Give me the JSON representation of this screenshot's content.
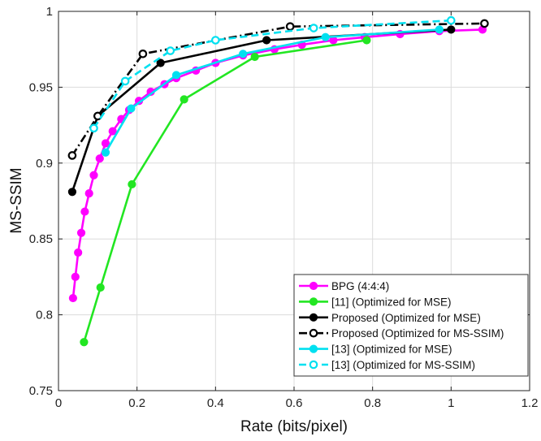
{
  "chart_data": {
    "type": "line",
    "title": "",
    "xlabel": "Rate (bits/pixel)",
    "ylabel": "MS-SSIM",
    "xlim": [
      0,
      1.2
    ],
    "ylim": [
      0.75,
      1
    ],
    "xticks": [
      0,
      0.2,
      0.4,
      0.6,
      0.8,
      1,
      1.2
    ],
    "xtick_labels": [
      "0",
      "0.2",
      "0.4",
      "0.6",
      "0.8",
      "1",
      "1.2"
    ],
    "yticks": [
      0.75,
      0.8,
      0.85,
      0.9,
      0.95,
      1
    ],
    "ytick_labels": [
      "0.75",
      "0.8",
      "0.85",
      "0.9",
      "0.95",
      "1"
    ],
    "grid": true,
    "legend_position": "bottom-right",
    "series": [
      {
        "name": "BPG (4:4:4)",
        "color": "#ff00ff",
        "dash": "solid",
        "marker": "filled",
        "points": [
          [
            0.037,
            0.811
          ],
          [
            0.043,
            0.825
          ],
          [
            0.05,
            0.841
          ],
          [
            0.058,
            0.854
          ],
          [
            0.067,
            0.868
          ],
          [
            0.078,
            0.88
          ],
          [
            0.09,
            0.892
          ],
          [
            0.105,
            0.903
          ],
          [
            0.12,
            0.913
          ],
          [
            0.138,
            0.921
          ],
          [
            0.16,
            0.929
          ],
          [
            0.18,
            0.935
          ],
          [
            0.205,
            0.941
          ],
          [
            0.235,
            0.947
          ],
          [
            0.27,
            0.952
          ],
          [
            0.3,
            0.956
          ],
          [
            0.35,
            0.961
          ],
          [
            0.4,
            0.966
          ],
          [
            0.47,
            0.971
          ],
          [
            0.55,
            0.975
          ],
          [
            0.62,
            0.978
          ],
          [
            0.7,
            0.981
          ],
          [
            0.78,
            0.983
          ],
          [
            0.87,
            0.985
          ],
          [
            0.97,
            0.987
          ],
          [
            1.08,
            0.988
          ]
        ]
      },
      {
        "name": "[11] (Optimized for MSE)",
        "color": "#22e622",
        "dash": "solid",
        "marker": "filled",
        "points": [
          [
            0.065,
            0.782
          ],
          [
            0.107,
            0.818
          ],
          [
            0.187,
            0.886
          ],
          [
            0.32,
            0.942
          ],
          [
            0.5,
            0.97
          ],
          [
            0.785,
            0.981
          ]
        ]
      },
      {
        "name": "Proposed (Optimized for MSE)",
        "color": "#000000",
        "dash": "solid",
        "marker": "filled",
        "points": [
          [
            0.035,
            0.881
          ],
          [
            0.1,
            0.931
          ],
          [
            0.26,
            0.966
          ],
          [
            0.53,
            0.981
          ],
          [
            1.0,
            0.988
          ]
        ]
      },
      {
        "name": "Proposed (Optimized for MS-SSIM)",
        "color": "#000000",
        "dash": "dashdot",
        "marker": "open",
        "points": [
          [
            0.035,
            0.905
          ],
          [
            0.1,
            0.931
          ],
          [
            0.215,
            0.972
          ],
          [
            0.59,
            0.99
          ],
          [
            1.085,
            0.992
          ]
        ]
      },
      {
        "name": "[13] (Optimized for MSE)",
        "color": "#00e0f0",
        "dash": "solid",
        "marker": "filled",
        "points": [
          [
            0.12,
            0.907
          ],
          [
            0.185,
            0.936
          ],
          [
            0.3,
            0.958
          ],
          [
            0.47,
            0.972
          ],
          [
            0.68,
            0.983
          ],
          [
            0.97,
            0.988
          ]
        ]
      },
      {
        "name": "[13] (Optimized for MS-SSIM)",
        "color": "#00e0f0",
        "dash": "dashed",
        "marker": "open",
        "points": [
          [
            0.09,
            0.923
          ],
          [
            0.17,
            0.954
          ],
          [
            0.285,
            0.974
          ],
          [
            0.4,
            0.981
          ],
          [
            0.65,
            0.989
          ],
          [
            1.0,
            0.994
          ]
        ]
      }
    ]
  }
}
